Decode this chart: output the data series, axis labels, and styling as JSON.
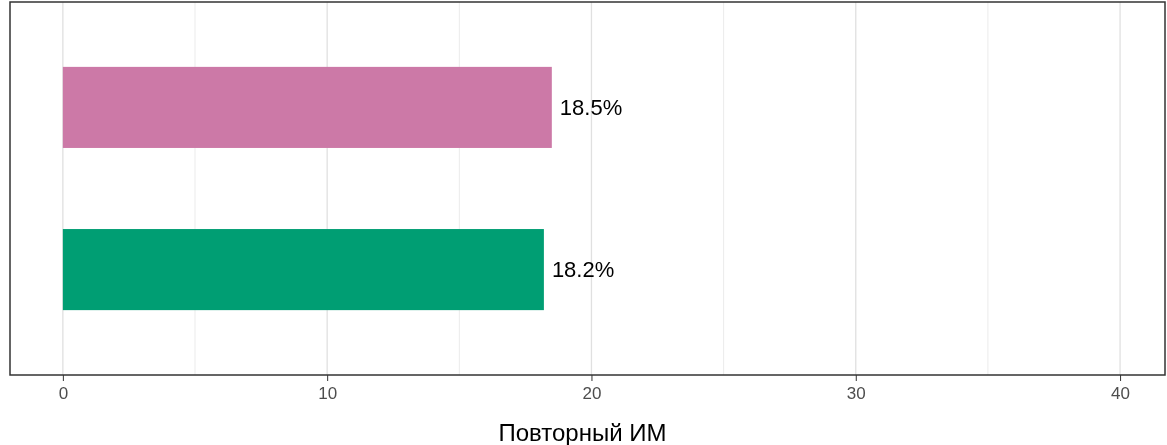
{
  "chart_data": {
    "type": "bar",
    "orientation": "horizontal",
    "xlabel": "Повторный ИМ",
    "categories": [
      null,
      null
    ],
    "values": [
      18.5,
      18.2
    ],
    "colors": [
      "#cc79a7",
      "#009e73"
    ],
    "value_labels": [
      "18.5%",
      "18.2%"
    ],
    "xlim": [
      -2,
      41.7
    ],
    "xticks": [
      0,
      {
        "value": 5,
        "label": null
      },
      10,
      {
        "value": 15,
        "label": null
      },
      20,
      {
        "value": 25,
        "label": null
      },
      30,
      {
        "value": 35,
        "label": null
      },
      40
    ],
    "grid": true,
    "tick_labels": "x"
  }
}
